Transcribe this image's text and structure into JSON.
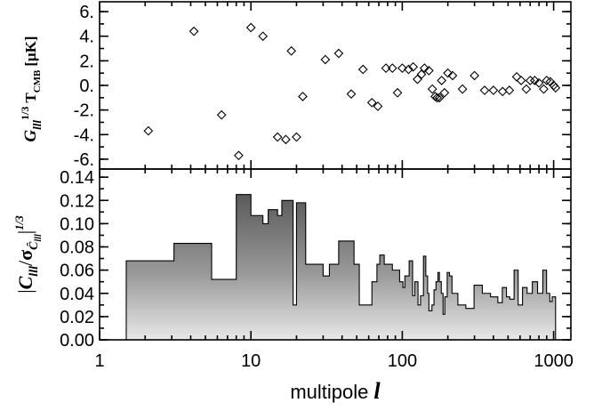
{
  "chart_data": [
    {
      "type": "scatter",
      "ylabel": "G_lll^1/3 T_CMB [μK]",
      "ylabel_parts": {
        "main": "G",
        "sub": "lll",
        "sup": "1/3",
        "t": "T",
        "tsub": "CMB",
        "unit": "[μK]"
      },
      "xscale": "log",
      "xlim": [
        1,
        1300
      ],
      "ylim": [
        -6.8,
        6.8
      ],
      "yticks": [
        6,
        4,
        2,
        0,
        -2,
        -4,
        -6
      ],
      "ytick_labels": [
        "6.",
        "4.",
        "2.",
        "0.",
        "-2.",
        "-4.",
        "-6."
      ],
      "points": [
        [
          2.1,
          -3.7
        ],
        [
          4.2,
          4.4
        ],
        [
          6.4,
          -2.4
        ],
        [
          8.3,
          -5.7
        ],
        [
          10,
          4.7
        ],
        [
          12,
          4.0
        ],
        [
          15,
          -4.2
        ],
        [
          17,
          -4.4
        ],
        [
          18.5,
          2.8
        ],
        [
          20,
          -4.2
        ],
        [
          22,
          -0.9
        ],
        [
          31,
          2.1
        ],
        [
          38,
          2.6
        ],
        [
          46,
          -0.7
        ],
        [
          55,
          1.3
        ],
        [
          63,
          -1.4
        ],
        [
          69,
          -1.7
        ],
        [
          78,
          1.4
        ],
        [
          86,
          1.4
        ],
        [
          93,
          -0.6
        ],
        [
          100,
          1.4
        ],
        [
          110,
          1.3
        ],
        [
          118,
          1.5
        ],
        [
          126,
          0.5
        ],
        [
          134,
          0.9
        ],
        [
          140,
          1.4
        ],
        [
          150,
          1.2
        ],
        [
          158,
          -0.3
        ],
        [
          165,
          -0.9
        ],
        [
          170,
          -1.0
        ],
        [
          176,
          -1.0
        ],
        [
          182,
          0.4
        ],
        [
          190,
          -0.6
        ],
        [
          200,
          1.0
        ],
        [
          215,
          0.8
        ],
        [
          250,
          -0.3
        ],
        [
          300,
          0.8
        ],
        [
          350,
          -0.4
        ],
        [
          400,
          -0.4
        ],
        [
          460,
          -0.5
        ],
        [
          510,
          -0.4
        ],
        [
          570,
          0.7
        ],
        [
          610,
          0.4
        ],
        [
          660,
          -0.3
        ],
        [
          700,
          0.4
        ],
        [
          750,
          0.4
        ],
        [
          800,
          0.2
        ],
        [
          860,
          -0.3
        ],
        [
          900,
          0.4
        ],
        [
          950,
          0.3
        ],
        [
          1000,
          0.0
        ],
        [
          1030,
          -0.2
        ]
      ]
    },
    {
      "type": "area",
      "ylabel": "|C_lll/σ_Ĉ_lll|^1/3",
      "ylabel_parts": {
        "main": "C",
        "sub": "lll",
        "sigma": "σ",
        "sigsub": "Ĉ",
        "sigsubsub": "lll",
        "sup": "1/3"
      },
      "xlabel": "multipole l",
      "xlabel_parts": {
        "text": "multipole",
        "var": "l"
      },
      "xscale": "log",
      "xlim": [
        1,
        1300
      ],
      "ylim": [
        0,
        0.147
      ],
      "yticks": [
        0.0,
        0.02,
        0.04,
        0.06,
        0.08,
        0.1,
        0.12,
        0.14
      ],
      "ytick_labels": [
        "0.00",
        "0.02",
        "0.04",
        "0.06",
        "0.08",
        "0.10",
        "0.12",
        "0.14"
      ],
      "xticks": [
        1,
        10,
        100,
        1000
      ],
      "xtick_labels": [
        "1",
        "10",
        "100",
        "1000"
      ],
      "x_range": [
        1.5,
        1030
      ],
      "steps": [
        [
          1.5,
          0.068
        ],
        [
          3.1,
          0.083
        ],
        [
          5.5,
          0.052
        ],
        [
          8,
          0.125
        ],
        [
          10,
          0.107
        ],
        [
          12,
          0.1
        ],
        [
          13,
          0.112
        ],
        [
          15,
          0.107
        ],
        [
          16,
          0.12
        ],
        [
          19,
          0.03
        ],
        [
          20,
          0.118
        ],
        [
          23,
          0.065
        ],
        [
          30,
          0.055
        ],
        [
          33,
          0.065
        ],
        [
          38,
          0.085
        ],
        [
          48,
          0.065
        ],
        [
          52,
          0.03
        ],
        [
          58,
          0.03
        ],
        [
          63,
          0.05
        ],
        [
          68,
          0.065
        ],
        [
          71,
          0.073
        ],
        [
          76,
          0.065
        ],
        [
          86,
          0.06
        ],
        [
          96,
          0.05
        ],
        [
          101,
          0.045
        ],
        [
          104,
          0.055
        ],
        [
          111,
          0.068
        ],
        [
          117,
          0.038
        ],
        [
          121,
          0.05
        ],
        [
          127,
          0.03
        ],
        [
          132,
          0.038
        ],
        [
          138,
          0.072
        ],
        [
          143,
          0.055
        ],
        [
          147,
          0.04
        ],
        [
          150,
          0.025
        ],
        [
          157,
          0.03
        ],
        [
          162,
          0.043
        ],
        [
          167,
          0.05
        ],
        [
          172,
          0.058
        ],
        [
          176,
          0.05
        ],
        [
          181,
          0.04
        ],
        [
          186,
          0.022
        ],
        [
          191,
          0.037
        ],
        [
          198,
          0.058
        ],
        [
          205,
          0.055
        ],
        [
          213,
          0.04
        ],
        [
          233,
          0.03
        ],
        [
          263,
          0.027
        ],
        [
          298,
          0.047
        ],
        [
          338,
          0.04
        ],
        [
          383,
          0.037
        ],
        [
          428,
          0.032
        ],
        [
          458,
          0.045
        ],
        [
          488,
          0.037
        ],
        [
          513,
          0.035
        ],
        [
          548,
          0.06
        ],
        [
          583,
          0.03
        ],
        [
          623,
          0.045
        ],
        [
          668,
          0.04
        ],
        [
          723,
          0.05
        ],
        [
          783,
          0.04
        ],
        [
          848,
          0.06
        ],
        [
          898,
          0.04
        ],
        [
          943,
          0.033
        ],
        [
          978,
          0.037
        ],
        [
          1030,
          null
        ]
      ]
    }
  ]
}
